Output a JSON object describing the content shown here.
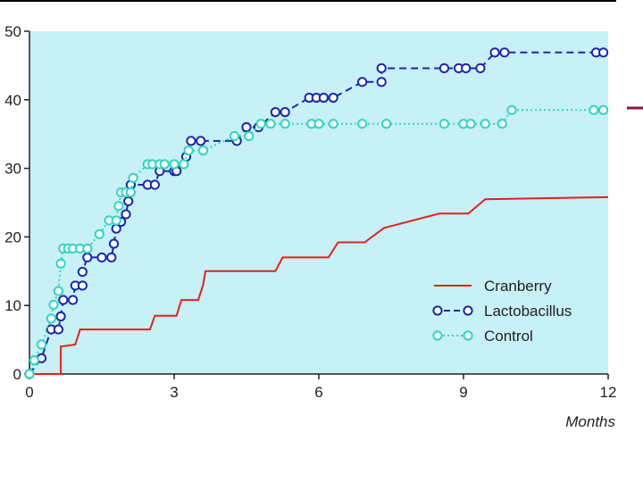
{
  "chart_data": {
    "type": "line",
    "title": "",
    "xlabel": "Months",
    "ylabel": "",
    "xlim": [
      0,
      12
    ],
    "ylim": [
      0,
      50
    ],
    "x_ticks": [
      0,
      3,
      6,
      9,
      12
    ],
    "y_ticks": [
      0,
      10,
      20,
      30,
      40,
      50
    ],
    "x_tick_labels": [
      "0",
      "3",
      "6",
      "9",
      "12"
    ],
    "y_tick_labels": [
      "0",
      "10",
      "20",
      "30",
      "40",
      "50"
    ],
    "grid": false,
    "legend_position": "bottom-right",
    "plot_background": "#c7f0f7",
    "series": [
      {
        "name": "Cranberry",
        "color": "#e0231c",
        "style": "solid",
        "markers": false,
        "points": [
          [
            0,
            0
          ],
          [
            0.65,
            0
          ],
          [
            0.65,
            4
          ],
          [
            0.95,
            4.3
          ],
          [
            1.05,
            6.5
          ],
          [
            2.5,
            6.5
          ],
          [
            2.6,
            8.5
          ],
          [
            3.05,
            8.5
          ],
          [
            3.15,
            10.8
          ],
          [
            3.5,
            10.8
          ],
          [
            3.6,
            13
          ],
          [
            3.65,
            15
          ],
          [
            5.1,
            15
          ],
          [
            5.25,
            17
          ],
          [
            6.2,
            17
          ],
          [
            6.4,
            19.2
          ],
          [
            6.95,
            19.2
          ],
          [
            7.35,
            21.3
          ],
          [
            8.5,
            23.4
          ],
          [
            9.1,
            23.4
          ],
          [
            9.45,
            25.5
          ],
          [
            12,
            25.8
          ]
        ]
      },
      {
        "name": "Lactobacillus",
        "color": "#1a2aa8",
        "style": "dashed",
        "markers": true,
        "points": [
          [
            0,
            0
          ],
          [
            0.25,
            2.3
          ],
          [
            0.45,
            6.5
          ],
          [
            0.6,
            6.5
          ],
          [
            0.65,
            8.4
          ],
          [
            0.7,
            10.8
          ],
          [
            0.9,
            10.8
          ],
          [
            0.95,
            12.9
          ],
          [
            1.1,
            12.9
          ],
          [
            1.1,
            14.9
          ],
          [
            1.2,
            17
          ],
          [
            1.5,
            17
          ],
          [
            1.7,
            17
          ],
          [
            1.75,
            19
          ],
          [
            1.8,
            21.2
          ],
          [
            1.9,
            22.2
          ],
          [
            2.0,
            23.3
          ],
          [
            2.05,
            25.2
          ],
          [
            2.1,
            27.6
          ],
          [
            2.45,
            27.6
          ],
          [
            2.6,
            27.6
          ],
          [
            2.7,
            29.6
          ],
          [
            3.0,
            29.6
          ],
          [
            3.05,
            29.6
          ],
          [
            3.25,
            31.7
          ],
          [
            3.35,
            34
          ],
          [
            3.55,
            34
          ],
          [
            4.3,
            34
          ],
          [
            4.5,
            36
          ],
          [
            4.75,
            36
          ],
          [
            5.1,
            38.2
          ],
          [
            5.3,
            38.2
          ],
          [
            5.8,
            40.3
          ],
          [
            5.95,
            40.3
          ],
          [
            6.1,
            40.3
          ],
          [
            6.3,
            40.3
          ],
          [
            6.9,
            42.6
          ],
          [
            7.3,
            42.6
          ],
          [
            7.3,
            44.6
          ],
          [
            8.6,
            44.6
          ],
          [
            8.9,
            44.6
          ],
          [
            9.05,
            44.6
          ],
          [
            9.35,
            44.6
          ],
          [
            9.65,
            46.9
          ],
          [
            9.85,
            46.9
          ],
          [
            11.75,
            46.9
          ],
          [
            11.9,
            46.9
          ]
        ]
      },
      {
        "name": "Control",
        "color": "#2ed6c0",
        "style": "dotted",
        "markers": true,
        "points": [
          [
            0,
            0
          ],
          [
            0.1,
            2
          ],
          [
            0.25,
            4.3
          ],
          [
            0.45,
            8.1
          ],
          [
            0.5,
            10.1
          ],
          [
            0.6,
            12.1
          ],
          [
            0.65,
            16.1
          ],
          [
            0.7,
            18.3
          ],
          [
            0.8,
            18.3
          ],
          [
            0.9,
            18.3
          ],
          [
            1.05,
            18.3
          ],
          [
            1.2,
            18.3
          ],
          [
            1.45,
            20.4
          ],
          [
            1.65,
            22.4
          ],
          [
            1.8,
            22.4
          ],
          [
            1.85,
            24.5
          ],
          [
            1.9,
            26.5
          ],
          [
            2.0,
            26.5
          ],
          [
            2.1,
            26.5
          ],
          [
            2.15,
            28.6
          ],
          [
            2.45,
            30.6
          ],
          [
            2.55,
            30.6
          ],
          [
            2.7,
            30.6
          ],
          [
            2.8,
            30.6
          ],
          [
            3.0,
            30.6
          ],
          [
            3.2,
            30.6
          ],
          [
            3.3,
            32.6
          ],
          [
            3.6,
            32.6
          ],
          [
            4.25,
            34.7
          ],
          [
            4.55,
            34.7
          ],
          [
            4.8,
            36.5
          ],
          [
            5.0,
            36.5
          ],
          [
            5.3,
            36.5
          ],
          [
            5.85,
            36.5
          ],
          [
            6.0,
            36.5
          ],
          [
            6.3,
            36.5
          ],
          [
            6.9,
            36.5
          ],
          [
            7.4,
            36.5
          ],
          [
            8.6,
            36.5
          ],
          [
            9.0,
            36.5
          ],
          [
            9.15,
            36.5
          ],
          [
            9.45,
            36.5
          ],
          [
            9.8,
            36.5
          ],
          [
            10.0,
            38.5
          ],
          [
            11.7,
            38.5
          ],
          [
            11.9,
            38.5
          ]
        ]
      }
    ]
  }
}
